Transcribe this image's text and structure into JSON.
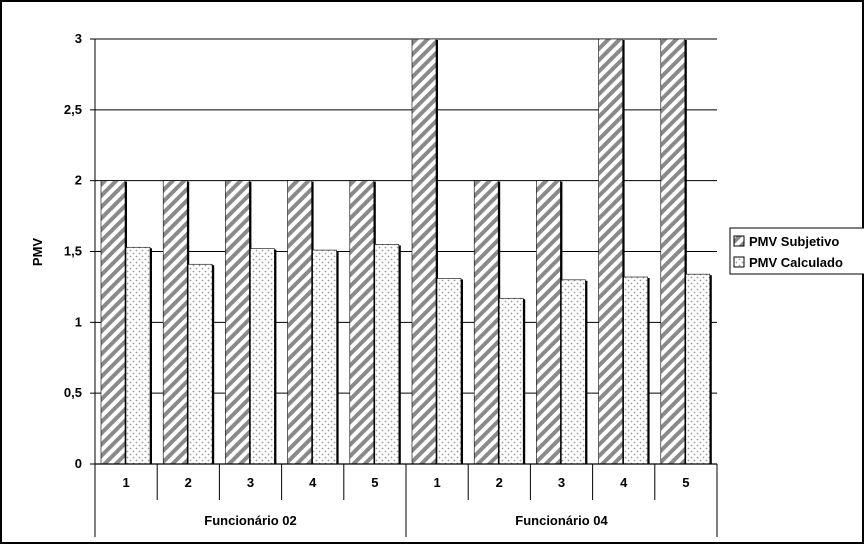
{
  "chart_data": {
    "type": "bar",
    "title": "",
    "xlabel": "",
    "ylabel": "PMV",
    "ylim": [
      0,
      3
    ],
    "yticks": [
      "0",
      "0,5",
      "1",
      "1,5",
      "2",
      "2,5",
      "3"
    ],
    "ytick_values": [
      0,
      0.5,
      1,
      1.5,
      2,
      2.5,
      3
    ],
    "grid": true,
    "legend_position": "right",
    "groups": [
      {
        "label": "Funcionário 02",
        "categories": [
          "1",
          "2",
          "3",
          "4",
          "5"
        ]
      },
      {
        "label": "Funcionário 04",
        "categories": [
          "1",
          "2",
          "3",
          "4",
          "5"
        ]
      }
    ],
    "series": [
      {
        "name": "PMV Subjetivo",
        "pattern": "diagonal-hatch",
        "values": [
          2,
          2,
          2,
          2,
          2,
          3,
          2,
          2,
          3,
          3
        ]
      },
      {
        "name": "PMV Calculado",
        "pattern": "dotted",
        "values": [
          1.53,
          1.41,
          1.52,
          1.51,
          1.55,
          1.31,
          1.17,
          1.3,
          1.32,
          1.34
        ]
      }
    ],
    "colors": {
      "hatch": "#808080",
      "dots": "#a0a0a0",
      "gridline": "#000000"
    }
  }
}
